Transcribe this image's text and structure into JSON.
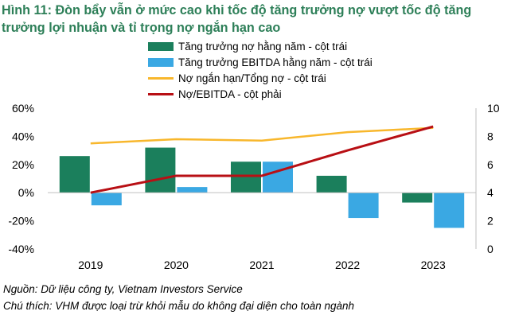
{
  "title": "Hình 11: Đòn bẩy vẫn ở mức cao khi tốc độ tăng trưởng nợ vượt tốc độ tăng trưởng lợi nhuận và tỉ trọng nợ ngắn hạn cao",
  "colors": {
    "title": "#2d7f58",
    "debt_growth": "#1b7f5c",
    "ebitda_growth": "#3aa8e3",
    "short_debt_ratio": "#f8b72c",
    "debt_ebitda": "#b80f14"
  },
  "chart_data": {
    "type": "bar+line",
    "categories": [
      "2019",
      "2020",
      "2021",
      "2022",
      "2023"
    ],
    "series": [
      {
        "name": "Tăng trưởng nợ hằng năm - cột trái",
        "type": "bar",
        "axis": "left",
        "values": [
          26,
          32,
          22,
          12,
          -7
        ]
      },
      {
        "name": "Tăng trưởng EBITDA hằng năm - cột trái",
        "type": "bar",
        "axis": "left",
        "values": [
          -9,
          4,
          22,
          -18,
          -25
        ]
      },
      {
        "name": "Nợ ngắn hạn/Tổng nợ - cột trái",
        "type": "line",
        "axis": "left",
        "values": [
          35,
          38,
          37,
          43,
          46
        ]
      },
      {
        "name": "Nợ/EBITDA - cột phải",
        "type": "line",
        "axis": "right",
        "values": [
          4.0,
          5.2,
          5.2,
          7.0,
          8.7
        ]
      }
    ],
    "y_left": {
      "min": -40,
      "max": 60,
      "ticks": [
        "60%",
        "40%",
        "20%",
        "0%",
        "-20%",
        "-40%"
      ]
    },
    "y_right": {
      "min": 0,
      "max": 10,
      "ticks": [
        "10",
        "8",
        "6",
        "4",
        "2",
        "0"
      ]
    },
    "legend_position": "top-center",
    "grid": false
  },
  "footer": {
    "source": "Nguồn: Dữ liệu công ty, Vietnam Investors Service",
    "note": "Chú thích: VHM được loại trừ khỏi mẫu do không đại diện cho toàn ngành"
  }
}
